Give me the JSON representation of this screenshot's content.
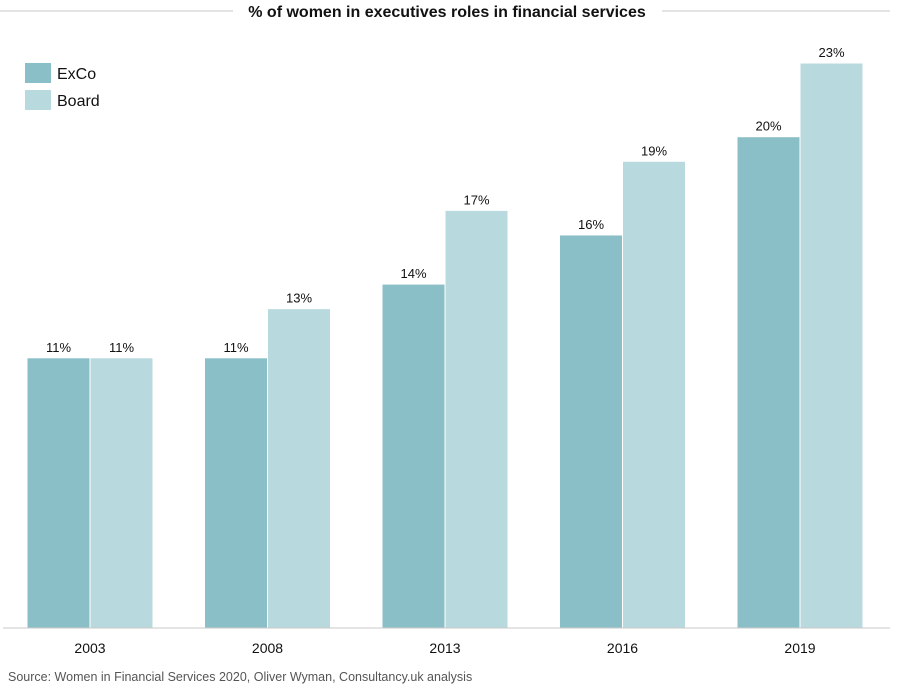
{
  "chart_data": {
    "type": "bar",
    "title": "% of women in executives roles in financial services",
    "categories": [
      "2003",
      "2008",
      "2013",
      "2016",
      "2019"
    ],
    "series": [
      {
        "name": "ExCo",
        "color": "#8bbfc8",
        "values": [
          11,
          11,
          14,
          16,
          20
        ],
        "labels": [
          "11%",
          "11%",
          "14%",
          "16%",
          "20%"
        ]
      },
      {
        "name": "Board",
        "color": "#b8dadf",
        "values": [
          11,
          13,
          17,
          19,
          23
        ],
        "labels": [
          "11%",
          "13%",
          "17%",
          "19%",
          "23%"
        ]
      }
    ],
    "xlabel": "",
    "ylabel": "",
    "ylim": [
      0,
      23
    ],
    "grid": false,
    "legend_position": "top-left"
  },
  "source": "Source: Women in Financial Services 2020, Oliver Wyman, Consultancy.uk analysis"
}
